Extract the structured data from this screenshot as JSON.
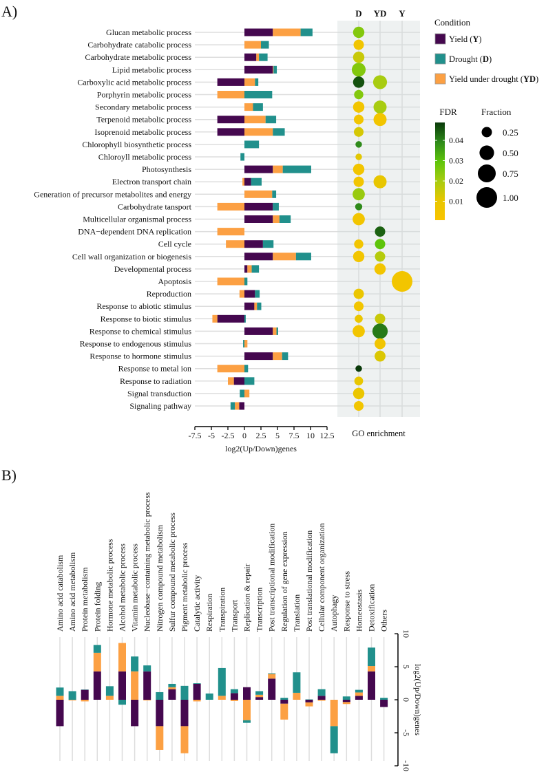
{
  "panels": {
    "a_label": "A)",
    "b_label": "B)"
  },
  "colors": {
    "Y": "#45084f",
    "D": "#21908c",
    "YD": "#fca043",
    "panel_bg": "#eef1f1",
    "grid": "#dddddd"
  },
  "legend": {
    "condition_title": "Condition",
    "items": [
      {
        "key": "Y",
        "label": "Yield",
        "abbr": "Y"
      },
      {
        "key": "D",
        "label": "Drought",
        "abbr": "D"
      },
      {
        "key": "YD",
        "label": "Yield under drought",
        "abbr": "YD"
      }
    ],
    "fdr_title": "FDR",
    "fdr_ticks": [
      "0.04",
      "0.03",
      "0.02",
      "0.01"
    ],
    "fraction_title": "Fraction",
    "fraction_ticks": [
      "0.25",
      "0.50",
      "0.75",
      "1.00"
    ]
  },
  "chart_data": [
    {
      "type": "bar",
      "panel": "A",
      "orientation": "horizontal",
      "stacked": true,
      "xlabel": "log2(Up/Down)genes",
      "xlim": [
        -7.5,
        12.5
      ],
      "xticks": [
        "-7.5",
        "-5",
        "-2.5",
        "0",
        "2.5",
        "5",
        "7.5",
        "10",
        "12.5"
      ],
      "categories": [
        "Glucan metabolic process",
        "Carbohydrate catabolic process",
        "Carbohydrate metabolic process",
        "Lipid metabolic process",
        "Carboxylic acid metabolic process",
        "Porphyrin metabolic process",
        "Secondary metabolic process",
        "Terpenoid metabolic process",
        "Isoprenoid metabolic process",
        "Chlorophyll biosynthetic process",
        "Chloroyll metabolic process",
        "Photosynthesis",
        "Electron transport chain",
        "Generation of precursor metabolites and energy",
        "Carbohydrate tansport",
        "Multicellular organismal process",
        "DNA−dependent DNA replication",
        "Cell cycle",
        "Cell wall organization or biogenesis",
        "Developmental process",
        "Apoptosis",
        "Reproduction",
        "Response to abiotic stimulus",
        "Response to biotic stimulus",
        "Response to chemical stimulus",
        "Response to endogenous stimulus",
        "Response to hormone stimulus",
        "Response to metal ion",
        "Response to radiation",
        "Signal transduction",
        "Signaling pathway"
      ],
      "series": [
        {
          "name": "Yield (Y)",
          "key": "Y",
          "values": [
            4.3,
            0,
            1.8,
            4.3,
            -4.1,
            0,
            0,
            -4.1,
            -4.1,
            0,
            0,
            4.3,
            1.0,
            0,
            4.3,
            4.3,
            0,
            2.8,
            4.3,
            0.45,
            0,
            1.6,
            1.5,
            -4.1,
            4.3,
            0,
            4.3,
            0,
            -1.6,
            0,
            -0.8
          ]
        },
        {
          "name": "Yield under drought (YD)",
          "key": "YD",
          "values": [
            4.2,
            2.5,
            0.4,
            0.1,
            1.6,
            -4.1,
            1.3,
            3.2,
            4.3,
            0,
            0,
            1.5,
            -0.3,
            4.2,
            -4.1,
            1.0,
            -4.1,
            -2.8,
            3.5,
            0.65,
            -4.1,
            -0.75,
            0.4,
            -0.75,
            0.55,
            0.45,
            1.4,
            -4.1,
            -0.9,
            0.75,
            -0.65
          ]
        },
        {
          "name": "Drought (D)",
          "key": "D",
          "values": [
            1.8,
            1.2,
            1.3,
            0.5,
            0.5,
            4.2,
            1.5,
            1.6,
            1.8,
            2.2,
            -0.6,
            4.3,
            1.6,
            0.6,
            0.9,
            1.7,
            0,
            1.6,
            2.3,
            1.1,
            0.45,
            0.7,
            0.65,
            0.2,
            0.25,
            -0.2,
            0.9,
            0.55,
            1.5,
            -0.7,
            -0.65
          ]
        }
      ]
    },
    {
      "type": "scatter",
      "panel": "A",
      "title": "GO enrichment",
      "columns": [
        "D",
        "YD",
        "Y"
      ],
      "size_var": "Fraction",
      "color_var": "FDR",
      "fdr_range": [
        0,
        0.05
      ],
      "points": [
        {
          "row": 0,
          "col": "D",
          "fdr": 0.025,
          "fraction": 0.3
        },
        {
          "row": 1,
          "col": "D",
          "fdr": 0.005,
          "fraction": 0.25
        },
        {
          "row": 2,
          "col": "D",
          "fdr": 0.015,
          "fraction": 0.3
        },
        {
          "row": 3,
          "col": "D",
          "fdr": 0.025,
          "fraction": 0.45
        },
        {
          "row": 4,
          "col": "D",
          "fdr": 0.047,
          "fraction": 0.3
        },
        {
          "row": 4,
          "col": "YD",
          "fdr": 0.02,
          "fraction": 0.45
        },
        {
          "row": 5,
          "col": "D",
          "fdr": 0.025,
          "fraction": 0.2
        },
        {
          "row": 6,
          "col": "D",
          "fdr": 0.004,
          "fraction": 0.3
        },
        {
          "row": 6,
          "col": "YD",
          "fdr": 0.02,
          "fraction": 0.4
        },
        {
          "row": 7,
          "col": "D",
          "fdr": 0.004,
          "fraction": 0.22
        },
        {
          "row": 7,
          "col": "YD",
          "fdr": 0.004,
          "fraction": 0.4
        },
        {
          "row": 8,
          "col": "D",
          "fdr": 0.013,
          "fraction": 0.22
        },
        {
          "row": 9,
          "col": "D",
          "fdr": 0.04,
          "fraction": 0.1
        },
        {
          "row": 10,
          "col": "D",
          "fdr": 0.011,
          "fraction": 0.1
        },
        {
          "row": 11,
          "col": "D",
          "fdr": 0.004,
          "fraction": 0.3
        },
        {
          "row": 12,
          "col": "D",
          "fdr": 0.004,
          "fraction": 0.25
        },
        {
          "row": 12,
          "col": "YD",
          "fdr": 0.01,
          "fraction": 0.4
        },
        {
          "row": 13,
          "col": "D",
          "fdr": 0.022,
          "fraction": 0.35
        },
        {
          "row": 14,
          "col": "D",
          "fdr": 0.04,
          "fraction": 0.12
        },
        {
          "row": 15,
          "col": "D",
          "fdr": 0.004,
          "fraction": 0.35
        },
        {
          "row": 16,
          "col": "YD",
          "fdr": 0.045,
          "fraction": 0.25
        },
        {
          "row": 17,
          "col": "D",
          "fdr": 0.004,
          "fraction": 0.2
        },
        {
          "row": 17,
          "col": "YD",
          "fdr": 0.03,
          "fraction": 0.25
        },
        {
          "row": 18,
          "col": "D",
          "fdr": 0.004,
          "fraction": 0.3
        },
        {
          "row": 18,
          "col": "YD",
          "fdr": 0.018,
          "fraction": 0.25
        },
        {
          "row": 19,
          "col": "YD",
          "fdr": 0.004,
          "fraction": 0.3
        },
        {
          "row": 20,
          "col": "Y",
          "fdr": 0.004,
          "fraction": 1.0
        },
        {
          "row": 21,
          "col": "D",
          "fdr": 0.008,
          "fraction": 0.25
        },
        {
          "row": 22,
          "col": "D",
          "fdr": 0.004,
          "fraction": 0.22
        },
        {
          "row": 23,
          "col": "D",
          "fdr": 0.008,
          "fraction": 0.15
        },
        {
          "row": 23,
          "col": "YD",
          "fdr": 0.015,
          "fraction": 0.25
        },
        {
          "row": 24,
          "col": "D",
          "fdr": 0.004,
          "fraction": 0.35
        },
        {
          "row": 24,
          "col": "YD",
          "fdr": 0.042,
          "fraction": 0.55
        },
        {
          "row": 25,
          "col": "YD",
          "fdr": 0.005,
          "fraction": 0.28
        },
        {
          "row": 26,
          "col": "YD",
          "fdr": 0.012,
          "fraction": 0.28
        },
        {
          "row": 27,
          "col": "D",
          "fdr": 0.05,
          "fraction": 0.1
        },
        {
          "row": 28,
          "col": "D",
          "fdr": 0.01,
          "fraction": 0.18
        },
        {
          "row": 29,
          "col": "D",
          "fdr": 0.008,
          "fraction": 0.3
        },
        {
          "row": 30,
          "col": "D",
          "fdr": 0.004,
          "fraction": 0.22
        }
      ]
    },
    {
      "type": "bar",
      "panel": "B",
      "orientation": "vertical",
      "stacked": true,
      "ylabel": "log2(Up/Down)genes",
      "ylim": [
        -10,
        10
      ],
      "yticks": [
        "-10",
        "-5",
        "0",
        "5",
        "10"
      ],
      "categories": [
        "Amino acid catabolism",
        "Amino acid metabolism",
        "Protein metabolism",
        "Protein folding",
        "Hormone metabolic process",
        "Alcohol metabolic process",
        "Vitamin metabolic process",
        "Nucleobase−containing metabolic process",
        "Nitrogen compound metabolism",
        "Sulfur compound metabolic process",
        "Pigment metabolic process",
        "Catalytic activity",
        "Respiration",
        "Transpiration",
        "Transport",
        "Replication & repair",
        "Transcription",
        "Post transcriptional modification",
        "Regulation of gene expression",
        "Translation",
        "Post translational modification",
        "Cellular component organization",
        "Autophagy",
        "Response to stress",
        "Homeostasis",
        "Detoxification",
        "Others"
      ],
      "series": [
        {
          "name": "Yield (Y)",
          "key": "Y",
          "values": [
            -4.0,
            0,
            1.5,
            4.3,
            0,
            4.3,
            -4.0,
            4.3,
            -4.0,
            1.6,
            -4.0,
            2.4,
            0,
            0,
            1.0,
            1.9,
            0.4,
            3.2,
            -0.6,
            0,
            -0.4,
            0.6,
            0,
            -0.35,
            0.6,
            4.3,
            -1.1
          ]
        },
        {
          "name": "Yield under drought (YD)",
          "key": "YD",
          "values": [
            0.6,
            -0.1,
            -0.25,
            2.8,
            0.6,
            4.3,
            4.3,
            -0.1,
            -3.6,
            0.3,
            -4.1,
            -0.25,
            0,
            0.6,
            -0.2,
            -3.1,
            0.35,
            0.7,
            -2.4,
            1.05,
            -0.6,
            -0.15,
            -4.0,
            -0.3,
            0.5,
            0.8,
            0
          ]
        },
        {
          "name": "Drought (D)",
          "key": "D",
          "values": [
            1.25,
            1.3,
            0.05,
            1.2,
            1.45,
            -0.75,
            2.25,
            0.9,
            1.15,
            0.5,
            2.1,
            0.1,
            0.95,
            4.2,
            0.6,
            -0.4,
            0.55,
            0.1,
            0.3,
            3.1,
            0.05,
            1.0,
            -4.1,
            0.5,
            0.4,
            2.8,
            0.3
          ]
        }
      ]
    }
  ]
}
